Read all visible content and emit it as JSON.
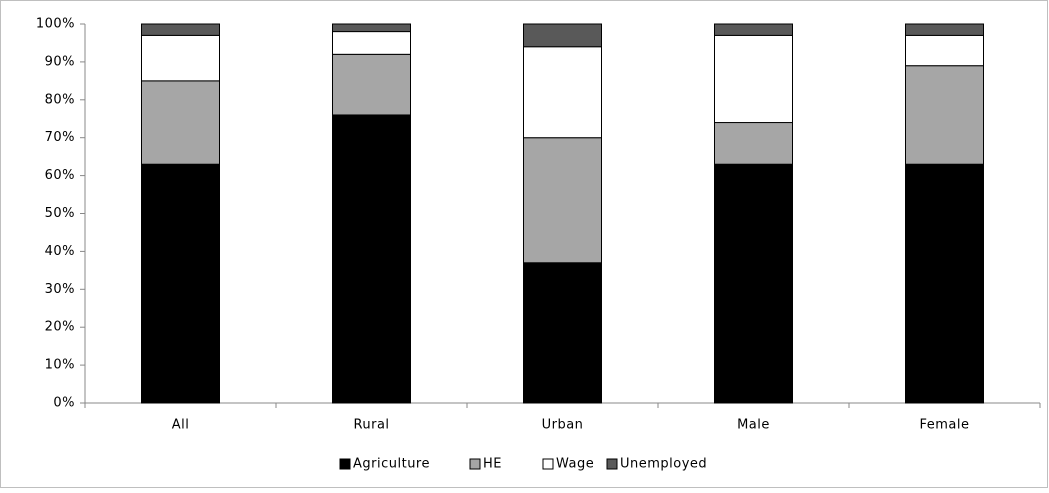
{
  "chart_data": {
    "type": "stacked_bar",
    "categories": [
      "All",
      "Rural",
      "Urban",
      "Male",
      "Female"
    ],
    "series": [
      {
        "name": "Agriculture",
        "color": "#000000",
        "values": [
          63,
          76,
          37,
          63,
          63
        ]
      },
      {
        "name": "HE",
        "color": "#a6a6a6",
        "values": [
          22,
          16,
          33,
          11,
          26
        ]
      },
      {
        "name": "Wage",
        "color": "#ffffff",
        "values": [
          12,
          6,
          24,
          23,
          8
        ]
      },
      {
        "name": "Unemployed",
        "color": "#595959",
        "values": [
          3,
          2,
          6,
          3,
          3
        ]
      }
    ],
    "ylim": [
      0,
      100
    ],
    "yticks": [
      {
        "value": 0,
        "label": "0%"
      },
      {
        "value": 10,
        "label": "10%"
      },
      {
        "value": 20,
        "label": "20%"
      },
      {
        "value": 30,
        "label": "30%"
      },
      {
        "value": 40,
        "label": "40%"
      },
      {
        "value": 50,
        "label": "50%"
      },
      {
        "value": 60,
        "label": "60%"
      },
      {
        "value": 70,
        "label": "70%"
      },
      {
        "value": 80,
        "label": "80%"
      },
      {
        "value": 90,
        "label": "90%"
      },
      {
        "value": 100,
        "label": "100%"
      }
    ],
    "legend": "bottom"
  }
}
